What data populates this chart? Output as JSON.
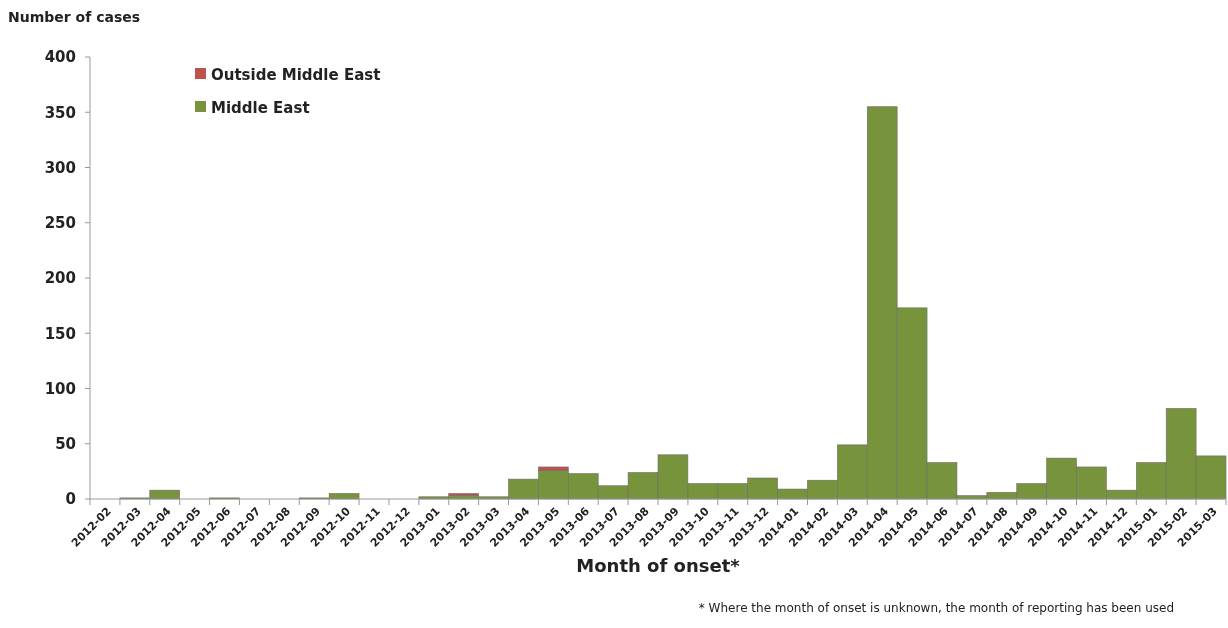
{
  "chart_data": {
    "type": "bar",
    "stacked": true,
    "ylabel": "Number of cases",
    "xlabel": "Month of onset*",
    "categories": [
      "2012-02",
      "2012-03",
      "2012-04",
      "2012-05",
      "2012-06",
      "2012-07",
      "2012-08",
      "2012-09",
      "2012-10",
      "2012-11",
      "2012-12",
      "2013-01",
      "2013-02",
      "2013-03",
      "2013-04",
      "2013-05",
      "2013-06",
      "2013-07",
      "2013-08",
      "2013-09",
      "2013-10",
      "2013-11",
      "2013-12",
      "2014-01",
      "2014-02",
      "2014-03",
      "2014-04",
      "2014-05",
      "2014-06",
      "2014-07",
      "2014-08",
      "2014-09",
      "2014-10",
      "2014-11",
      "2014-12",
      "2015-01",
      "2015-02",
      "2015-03"
    ],
    "series": [
      {
        "name": "Middle East",
        "color": "#77933c",
        "values": [
          0,
          1,
          8,
          0,
          1,
          0,
          0,
          1,
          5,
          0,
          0,
          2,
          3,
          2,
          18,
          26,
          23,
          12,
          24,
          40,
          14,
          14,
          19,
          9,
          17,
          49,
          355,
          173,
          33,
          3,
          6,
          14,
          37,
          29,
          8,
          33,
          82,
          39
        ]
      },
      {
        "name": "Outside Middle East",
        "color": "#c0504d",
        "values": [
          0,
          0,
          0,
          0,
          0,
          0,
          0,
          0,
          0,
          0,
          0,
          0,
          2,
          0,
          0,
          3,
          0,
          0,
          0,
          0,
          0,
          0,
          0,
          0,
          0,
          0,
          0,
          0,
          0,
          0,
          0,
          0,
          0,
          0,
          0,
          0,
          0,
          0
        ]
      }
    ],
    "ylim": [
      0,
      400
    ],
    "yticks": [
      0,
      50,
      100,
      150,
      200,
      250,
      300,
      350,
      400
    ],
    "grid": false,
    "legend": "top left",
    "annotations": [
      "* Where the month of onset is unknown, the month of reporting has been used"
    ]
  }
}
